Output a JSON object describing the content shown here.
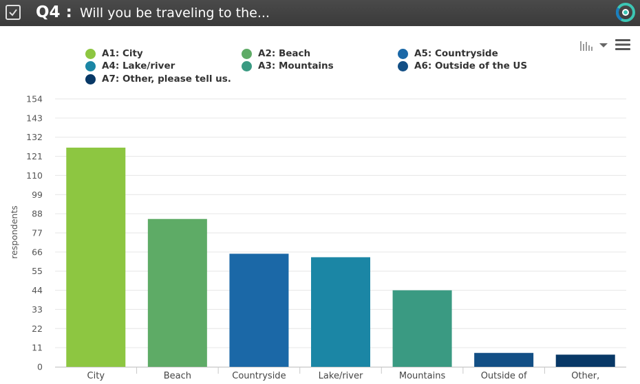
{
  "header": {
    "question_number": "Q4 :",
    "question_title": "Will you be traveling to the..."
  },
  "icons": {
    "checkbox": "checkbox-icon",
    "logo": "logo-icon",
    "chart_type": "bar-chart-icon",
    "caret": "caret-down-icon",
    "menu": "hamburger-menu-icon"
  },
  "legend": [
    {
      "label": "A1: City",
      "color": "#8dc641"
    },
    {
      "label": "A2: Beach",
      "color": "#5eab66"
    },
    {
      "label": "A5: Countryside",
      "color": "#1b68a7"
    },
    {
      "label": "A4: Lake/river",
      "color": "#1b86a5"
    },
    {
      "label": "A3: Mountains",
      "color": "#3a9a82"
    },
    {
      "label": "A6: Outside of the US",
      "color": "#134f85"
    },
    {
      "label": "A7: Other, please tell us.",
      "color": "#083866"
    }
  ],
  "chart_data": {
    "type": "bar",
    "ylabel": "respondents",
    "ylim": [
      0,
      154
    ],
    "yticks": [
      0,
      11,
      22,
      33,
      44,
      55,
      66,
      77,
      88,
      99,
      110,
      121,
      132,
      143,
      154
    ],
    "grid": true,
    "legend_position": "top",
    "categories": [
      "City",
      "Beach",
      "Countryside",
      "Lake/river",
      "Mountains",
      "Outside of",
      "Other,"
    ],
    "values": [
      126,
      85,
      65,
      63,
      44,
      8,
      7
    ],
    "colors": [
      "#8dc641",
      "#5eab66",
      "#1b68a7",
      "#1b86a5",
      "#3a9a82",
      "#134f85",
      "#083866"
    ]
  }
}
